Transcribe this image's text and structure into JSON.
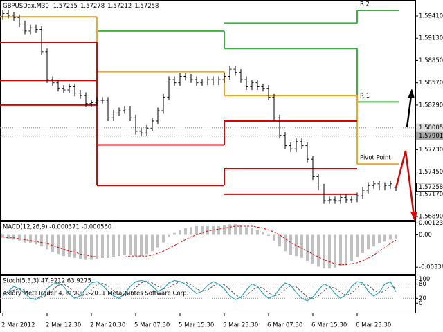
{
  "chart_data": [
    {
      "type": "ohlc",
      "symbol": "GBPUSDax,M30",
      "categories": [
        "2 Mar 2012",
        null,
        null,
        null,
        null,
        null,
        null,
        null,
        "2 Mar 12:30",
        null,
        null,
        null,
        null,
        null,
        null,
        null,
        "2 Mar 20:30",
        null,
        null,
        null,
        null,
        null,
        null,
        null,
        "5 Mar 07:30",
        null,
        null,
        null,
        null,
        null,
        null,
        null,
        "5 Mar 15:30",
        null,
        null,
        null,
        null,
        null,
        null,
        null,
        "5 Mar 23:30",
        null,
        null,
        null,
        null,
        null,
        null,
        null,
        "6 Mar 07:30",
        null,
        null,
        null,
        null,
        null,
        null,
        null,
        "6 Mar 15:30",
        null,
        null,
        null,
        null,
        null,
        null,
        null,
        "6 Mar 23:30",
        null,
        null,
        null,
        null,
        null,
        null,
        null
      ],
      "open": [
        1.594,
        1.5944,
        1.5942,
        1.5939,
        1.5931,
        1.5922,
        1.5926,
        1.5924,
        1.5896,
        1.5861,
        1.5857,
        1.585,
        1.5848,
        1.5852,
        1.5844,
        1.5841,
        1.5831,
        1.5832,
        1.5835,
        1.5835,
        1.5813,
        1.5819,
        1.5822,
        1.5824,
        1.5813,
        1.5796,
        1.5794,
        1.58,
        1.5809,
        1.5822,
        1.5839,
        1.5861,
        1.5857,
        1.5865,
        1.5864,
        1.5861,
        1.5857,
        1.5858,
        1.5861,
        1.5858,
        1.5861,
        1.5865,
        1.5874,
        1.587,
        1.5861,
        1.5852,
        1.5857,
        1.5852,
        1.585,
        1.5839,
        1.5813,
        1.5791,
        1.5778,
        1.5774,
        1.5783,
        1.5778,
        1.5761,
        1.5739,
        1.5726,
        1.5709,
        1.571,
        1.5709,
        1.5713,
        1.571,
        1.5711,
        1.5715,
        1.5722,
        1.5728,
        1.573,
        1.5726,
        1.5728,
        1.57255
      ],
      "high": [
        1.5948,
        1.5948,
        1.5946,
        1.5943,
        1.5935,
        1.593,
        1.593,
        1.5928,
        1.59,
        1.5865,
        1.5861,
        1.5854,
        1.5856,
        1.5856,
        1.5848,
        1.5845,
        1.5836,
        1.5839,
        1.5839,
        1.5839,
        1.5823,
        1.5826,
        1.5828,
        1.5828,
        1.5817,
        1.58,
        1.5804,
        1.5813,
        1.5826,
        1.5843,
        1.5865,
        1.5865,
        1.5869,
        1.5869,
        1.5868,
        1.5865,
        1.5862,
        1.5865,
        1.5865,
        1.5865,
        1.5869,
        1.5878,
        1.5878,
        1.5874,
        1.5865,
        1.5861,
        1.5861,
        1.5856,
        1.5854,
        1.5843,
        1.5817,
        1.5795,
        1.5782,
        1.5787,
        1.5787,
        1.5782,
        1.5765,
        1.5743,
        1.573,
        1.5714,
        1.5714,
        1.5717,
        1.5717,
        1.5715,
        1.5719,
        1.5726,
        1.5732,
        1.5734,
        1.5734,
        1.5732,
        1.5734,
        1.57278
      ],
      "low": [
        1.5936,
        1.5938,
        1.5935,
        1.5927,
        1.5918,
        1.5918,
        1.592,
        1.5892,
        1.5857,
        1.5853,
        1.5846,
        1.5844,
        1.5844,
        1.584,
        1.5837,
        1.5827,
        1.5827,
        1.5828,
        1.5831,
        1.5809,
        1.5809,
        1.5815,
        1.5818,
        1.5809,
        1.5792,
        1.579,
        1.579,
        1.5796,
        1.5805,
        1.5818,
        1.5835,
        1.5853,
        1.5853,
        1.586,
        1.5857,
        1.5853,
        1.5853,
        1.5854,
        1.5854,
        1.5854,
        1.5857,
        1.5861,
        1.5866,
        1.5857,
        1.5848,
        1.5848,
        1.5848,
        1.5846,
        1.5835,
        1.5809,
        1.5787,
        1.5774,
        1.577,
        1.577,
        1.5774,
        1.5757,
        1.5735,
        1.5722,
        1.5705,
        1.5705,
        1.5705,
        1.5705,
        1.5706,
        1.5706,
        1.5707,
        1.5711,
        1.5718,
        1.5724,
        1.5722,
        1.5722,
        1.5724,
        1.57212
      ],
      "close": [
        1.5944,
        1.5942,
        1.5939,
        1.5931,
        1.5922,
        1.5926,
        1.5924,
        1.5896,
        1.5861,
        1.5857,
        1.585,
        1.5848,
        1.5852,
        1.5844,
        1.5841,
        1.5831,
        1.5832,
        1.5835,
        1.5835,
        1.5813,
        1.5819,
        1.5822,
        1.5824,
        1.5813,
        1.5796,
        1.5794,
        1.58,
        1.5809,
        1.5822,
        1.5839,
        1.5861,
        1.5857,
        1.5865,
        1.5864,
        1.5861,
        1.5857,
        1.5858,
        1.5861,
        1.5858,
        1.5861,
        1.5865,
        1.5874,
        1.587,
        1.5861,
        1.5852,
        1.5857,
        1.5852,
        1.585,
        1.5839,
        1.5813,
        1.5791,
        1.5778,
        1.5774,
        1.5783,
        1.5778,
        1.5761,
        1.5739,
        1.5726,
        1.5709,
        1.571,
        1.5709,
        1.5713,
        1.571,
        1.5711,
        1.5715,
        1.5722,
        1.5728,
        1.573,
        1.5726,
        1.5728,
        1.573,
        1.57258
      ],
      "color": "#000000",
      "ylim": [
        1.56847,
        1.5961
      ],
      "yticks": [
        {
          "value": 1.5941,
          "label": "1.59410"
        },
        {
          "value": 1.5913,
          "label": "1.59130"
        },
        {
          "value": 1.5885,
          "label": "1.58850"
        },
        {
          "value": 1.5857,
          "label": "1.58570"
        },
        {
          "value": 1.5829,
          "label": "1.58290"
        },
        {
          "value": 1.5773,
          "label": "1.57730"
        },
        {
          "value": 1.5745,
          "label": "1.57450"
        },
        {
          "value": 1.5717,
          "label": "1.57170"
        },
        {
          "value": 1.5689,
          "label": "1.56890"
        }
      ],
      "hlines": [
        {
          "value": 1.58005,
          "label": "1.58005",
          "color": "#dcdcdc"
        },
        {
          "value": 1.57901,
          "label": "1.57901",
          "color": "#a8a8a8"
        }
      ],
      "levels": {
        "periods": [
          [
            -0.5,
            17
          ],
          [
            17,
            40
          ],
          [
            40,
            64
          ],
          [
            64,
            71.5
          ]
        ],
        "label_color": "#d9a441",
        "series": [
          {
            "name": "R 2",
            "color": "#3cb043",
            "values": [
              null,
              null,
              1.5932,
              1.5948
            ]
          },
          {
            "name": "R 1",
            "color": "#3cb043",
            "values": [
              null,
              1.5922,
              1.59,
              1.5833
            ]
          },
          {
            "name": "Pivot Point",
            "color": "#f5a524",
            "values": [
              1.594,
              1.5871,
              1.5841,
              1.5755
            ]
          },
          {
            "color": "#e00000",
            "values": [
              1.5908,
              1.5779,
              1.5809,
              null
            ]
          },
          {
            "color": "#e00000",
            "values": [
              1.586,
              1.5728,
              1.5749,
              null
            ]
          },
          {
            "color": "#e00000",
            "values": [
              1.5829,
              null,
              1.5717,
              null
            ]
          }
        ]
      }
    },
    {
      "type": "macd",
      "title": "MACD(12,26,9) -0.000371 -0.000560",
      "histogram": {
        "color": "#c0c0c0",
        "values": [
          -0.0003,
          -0.0004,
          -0.0005,
          -0.0006,
          -0.0008,
          -0.0009,
          -0.001,
          -0.0012,
          -0.0015,
          -0.0018,
          -0.002,
          -0.0022,
          -0.0023,
          -0.0024,
          -0.0025,
          -0.0026,
          -0.0026,
          -0.0025,
          -0.0024,
          -0.0024,
          -0.0023,
          -0.0022,
          -0.0021,
          -0.0021,
          -0.0022,
          -0.0022,
          -0.002,
          -0.0017,
          -0.0013,
          -0.0008,
          -0.0002,
          0.0002,
          0.0005,
          0.0007,
          0.0008,
          0.0009,
          0.0009,
          0.0009,
          0.0009,
          0.0009,
          0.001,
          0.0011,
          0.0011,
          0.001,
          0.0008,
          0.0007,
          0.0005,
          0.0003,
          -0.0001,
          -0.0006,
          -0.0012,
          -0.0017,
          -0.0021,
          -0.0022,
          -0.0024,
          -0.0027,
          -0.003,
          -0.0033,
          -0.0035,
          -0.0035,
          -0.0034,
          -0.0032,
          -0.003,
          -0.0027,
          -0.0023,
          -0.0019,
          -0.0015,
          -0.0012,
          -0.0009,
          -0.0007,
          -0.0005,
          -0.000371
        ]
      },
      "signal": {
        "color": "#e00000",
        "values": [
          -0.0002,
          -0.0003,
          -0.0003,
          -0.0004,
          -0.0005,
          -0.0006,
          -0.0007,
          -0.0008,
          -0.0009,
          -0.0011,
          -0.0013,
          -0.0015,
          -0.0017,
          -0.0018,
          -0.002,
          -0.0021,
          -0.0022,
          -0.0023,
          -0.0023,
          -0.0023,
          -0.0023,
          -0.0023,
          -0.0023,
          -0.0022,
          -0.0022,
          -0.0022,
          -0.0022,
          -0.0021,
          -0.0019,
          -0.0017,
          -0.0014,
          -0.0011,
          -0.0008,
          -0.0005,
          -0.0002,
          0.0,
          0.0002,
          0.0004,
          0.0005,
          0.0006,
          0.0007,
          0.0008,
          0.0009,
          0.0009,
          0.0009,
          0.0009,
          0.0008,
          0.0007,
          0.0005,
          0.0003,
          0.0,
          -0.0004,
          -0.0008,
          -0.0011,
          -0.0014,
          -0.0017,
          -0.002,
          -0.0023,
          -0.0026,
          -0.0028,
          -0.003,
          -0.0031,
          -0.0031,
          -0.003,
          -0.0029,
          -0.0027,
          -0.0024,
          -0.0021,
          -0.0017,
          -0.0013,
          -0.0009,
          -0.00056
        ]
      },
      "ylim": [
        -0.00399,
        0.00126
      ],
      "yticks": [
        0.001235,
        {
          "value": 0,
          "label": "0.00"
        },
        -0.00336
      ]
    },
    {
      "type": "stoch",
      "title": "Stoch(5,3,3) 47.9212 63.9275",
      "main": {
        "color": "#2aa0b8",
        "values": [
          30,
          50,
          70,
          60,
          40,
          20,
          15,
          30,
          60,
          80,
          85,
          70,
          40,
          20,
          30,
          60,
          85,
          90,
          75,
          50,
          30,
          20,
          40,
          70,
          90,
          95,
          90,
          70,
          50,
          60,
          85,
          95,
          90,
          80,
          60,
          40,
          50,
          75,
          90,
          80,
          60,
          30,
          15,
          25,
          55,
          80,
          70,
          40,
          20,
          30,
          60,
          85,
          75,
          45,
          20,
          10,
          25,
          55,
          80,
          70,
          40,
          20,
          35,
          70,
          90,
          85,
          50,
          30,
          45,
          80,
          90,
          47.9212
        ]
      },
      "signal": {
        "color": "#555555",
        "values": [
          40,
          45,
          55,
          60,
          55,
          40,
          25,
          22,
          35,
          55,
          75,
          80,
          65,
          45,
          30,
          35,
          55,
          78,
          83,
          72,
          52,
          35,
          30,
          45,
          65,
          85,
          92,
          85,
          70,
          60,
          65,
          80,
          90,
          88,
          77,
          60,
          50,
          55,
          72,
          82,
          77,
          57,
          35,
          23,
          32,
          53,
          68,
          63,
          43,
          30,
          37,
          58,
          73,
          68,
          47,
          25,
          18,
          30,
          53,
          68,
          63,
          45,
          32,
          42,
          65,
          82,
          75,
          55,
          42,
          52,
          72,
          63.9275
        ]
      },
      "levels": [
        80,
        20
      ],
      "ylim": [
        -5,
        105
      ],
      "yticks": [
        100,
        80,
        20,
        0
      ]
    }
  ],
  "footer": "Axiory MetaTrader 4, © 2001-2011 MetaQuotes Software Corp."
}
